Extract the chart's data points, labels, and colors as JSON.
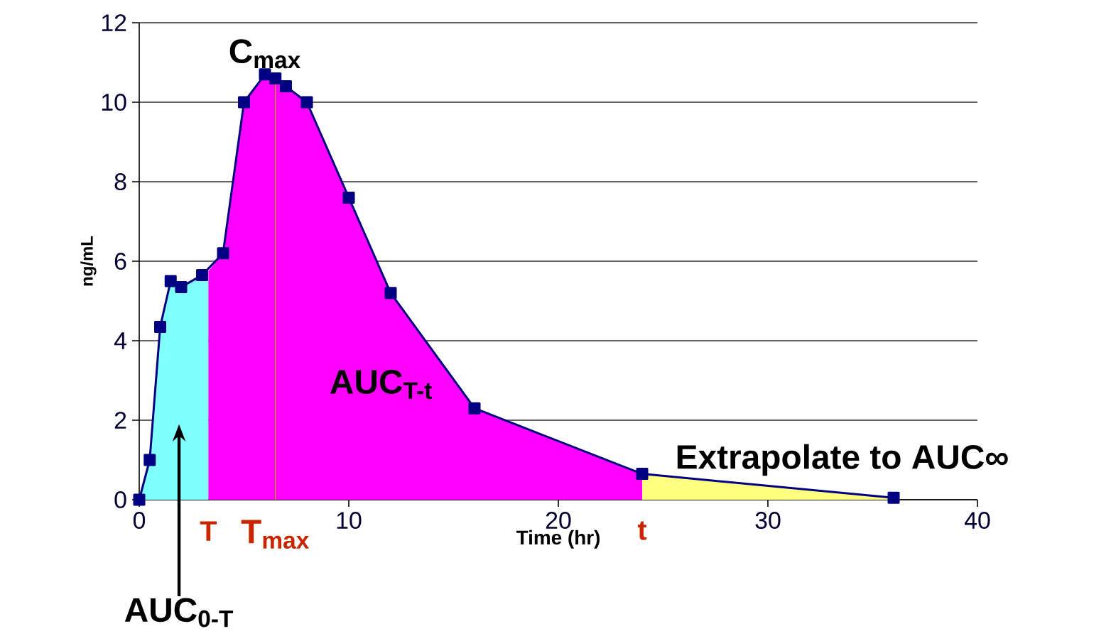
{
  "chart_data": {
    "type": "line",
    "xlabel": "Time (hr)",
    "ylabel": "ng/mL",
    "xlim": [
      0,
      40
    ],
    "xticks": [
      0,
      10,
      20,
      30,
      40
    ],
    "ylim": [
      0,
      12
    ],
    "yticks": [
      0,
      2,
      4,
      6,
      8,
      10,
      12
    ],
    "grid": "y",
    "series": [
      {
        "type": "area",
        "color": "#80ffff",
        "x": [
          0,
          0.5,
          1,
          1.5,
          2,
          3,
          3.3
        ],
        "values": [
          0,
          1.0,
          4.35,
          5.5,
          5.35,
          5.65,
          5.75
        ]
      },
      {
        "type": "area",
        "color": "#ff00ff",
        "x": [
          3.3,
          4,
          5,
          6,
          6.5,
          7,
          8,
          10,
          12,
          16,
          24
        ],
        "values": [
          5.75,
          6.2,
          10.0,
          10.7,
          10.6,
          10.4,
          10.0,
          7.6,
          5.2,
          2.3,
          0.65
        ]
      },
      {
        "type": "area",
        "color": "#ffff80",
        "x": [
          24,
          36
        ],
        "values": [
          0.65,
          0.05
        ]
      },
      {
        "color": "#000080",
        "marker": "square",
        "x": [
          0,
          0.5,
          1,
          1.5,
          2,
          3,
          4,
          5,
          6,
          6.5,
          7,
          8,
          10,
          12,
          16,
          24,
          36
        ],
        "values": [
          0,
          1.0,
          4.35,
          5.5,
          5.35,
          5.65,
          6.2,
          10.0,
          10.7,
          10.6,
          10.4,
          10.0,
          7.6,
          5.2,
          2.3,
          0.65,
          0.05
        ]
      }
    ],
    "ref_lines": [
      {
        "axis": "x",
        "value": 6.5,
        "label": "T$_{max}$",
        "color": "#d08040"
      }
    ],
    "annotations": [
      {
        "text": "C$_{max}$",
        "x": 6,
        "y": 10.7
      },
      "AUC$_{T-t}$",
      "AUC$_{0-T}$",
      "T",
      "t",
      "Extrapolate to AUC∞"
    ]
  }
}
